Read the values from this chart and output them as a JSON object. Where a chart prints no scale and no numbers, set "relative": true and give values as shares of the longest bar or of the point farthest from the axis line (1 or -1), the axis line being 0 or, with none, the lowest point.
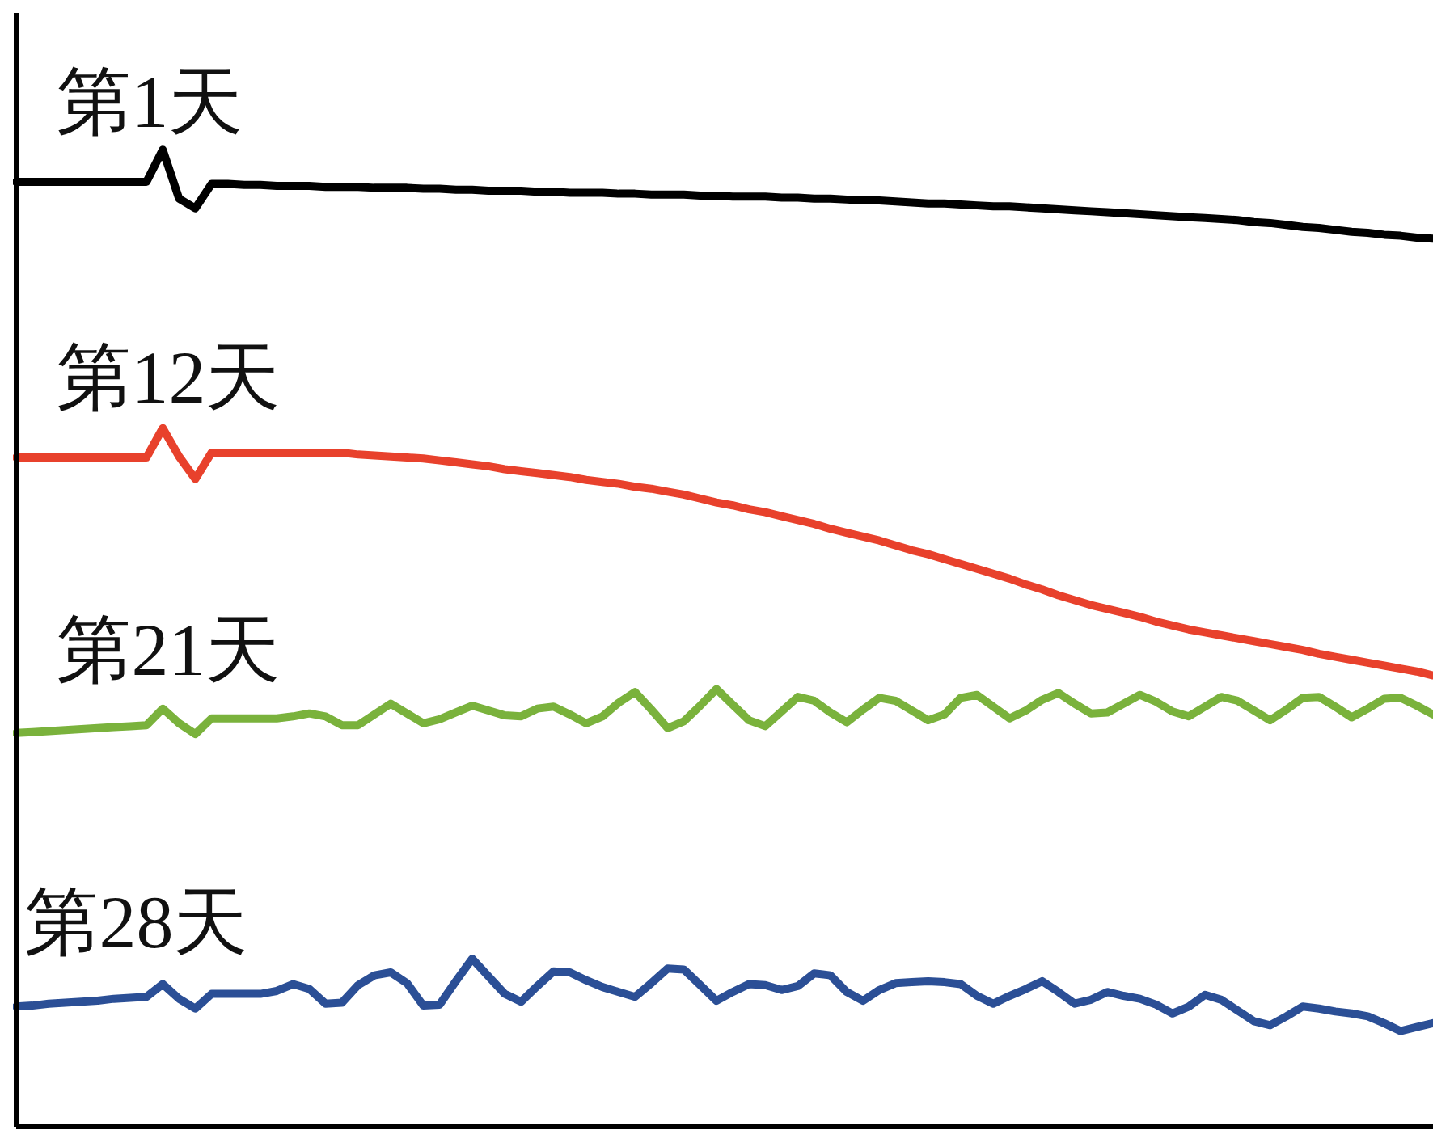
{
  "chart_data": {
    "type": "line",
    "relative": true,
    "marker": "none",
    "line_style": "solid",
    "categories": [
      null,
      null,
      null,
      null,
      null,
      null,
      null,
      null,
      null,
      null,
      null,
      null,
      null,
      null,
      null,
      null,
      null,
      null,
      null,
      null,
      null,
      null,
      null,
      null,
      null,
      null,
      null,
      null,
      null,
      null,
      null,
      null,
      null,
      null,
      null,
      null,
      null,
      null,
      null,
      null,
      null,
      null,
      null,
      null,
      null,
      null,
      null,
      null,
      null,
      null,
      null,
      null,
      null,
      null,
      null,
      null,
      null,
      null,
      null,
      null,
      null,
      null,
      null,
      null,
      null,
      null,
      null,
      null,
      null,
      null,
      null,
      null,
      null,
      null,
      null,
      null,
      null,
      null,
      null,
      null,
      null,
      null,
      null,
      null,
      null,
      null,
      null,
      null
    ],
    "series": [
      {
        "name": "第1天",
        "color": "#000000",
        "values": [
          0.967,
          0.967,
          0.967,
          0.967,
          0.967,
          0.967,
          0.967,
          0.967,
          0.967,
          1.0,
          0.95,
          0.94,
          0.965,
          0.965,
          0.964,
          0.964,
          0.963,
          0.963,
          0.963,
          0.962,
          0.962,
          0.962,
          0.961,
          0.961,
          0.961,
          0.96,
          0.96,
          0.959,
          0.959,
          0.958,
          0.958,
          0.958,
          0.957,
          0.957,
          0.956,
          0.956,
          0.956,
          0.955,
          0.955,
          0.954,
          0.954,
          0.954,
          0.953,
          0.953,
          0.952,
          0.952,
          0.952,
          0.951,
          0.951,
          0.95,
          0.95,
          0.949,
          0.948,
          0.948,
          0.947,
          0.946,
          0.945,
          0.945,
          0.944,
          0.943,
          0.942,
          0.942,
          0.941,
          0.94,
          0.939,
          0.938,
          0.937,
          0.936,
          0.935,
          0.934,
          0.933,
          0.932,
          0.931,
          0.93,
          0.929,
          0.928,
          0.926,
          0.925,
          0.923,
          0.921,
          0.92,
          0.918,
          0.916,
          0.915,
          0.913,
          0.912,
          0.91,
          0.909
        ]
      },
      {
        "name": "第12天",
        "color": "#e8412c",
        "values": [
          0.685,
          0.685,
          0.685,
          0.685,
          0.685,
          0.685,
          0.685,
          0.685,
          0.685,
          0.715,
          0.686,
          0.663,
          0.69,
          0.69,
          0.69,
          0.69,
          0.69,
          0.69,
          0.69,
          0.69,
          0.69,
          0.688,
          0.687,
          0.686,
          0.685,
          0.684,
          0.682,
          0.68,
          0.678,
          0.676,
          0.673,
          0.671,
          0.669,
          0.667,
          0.665,
          0.662,
          0.66,
          0.658,
          0.655,
          0.653,
          0.65,
          0.647,
          0.643,
          0.639,
          0.636,
          0.632,
          0.629,
          0.625,
          0.621,
          0.617,
          0.612,
          0.608,
          0.604,
          0.6,
          0.595,
          0.59,
          0.586,
          0.581,
          0.576,
          0.571,
          0.566,
          0.561,
          0.555,
          0.55,
          0.544,
          0.539,
          0.534,
          0.53,
          0.526,
          0.522,
          0.517,
          0.513,
          0.509,
          0.506,
          0.503,
          0.5,
          0.497,
          0.494,
          0.491,
          0.488,
          0.484,
          0.481,
          0.478,
          0.475,
          0.472,
          0.469,
          0.466,
          0.462
        ]
      },
      {
        "name": "第21天",
        "color": "#7ab23c",
        "values": [
          0.403,
          0.404,
          0.405,
          0.406,
          0.407,
          0.408,
          0.409,
          0.41,
          0.411,
          0.428,
          0.413,
          0.402,
          0.418,
          0.418,
          0.418,
          0.418,
          0.418,
          0.42,
          0.423,
          0.42,
          0.411,
          0.411,
          0.422,
          0.433,
          0.423,
          0.413,
          0.417,
          0.424,
          0.431,
          0.426,
          0.421,
          0.42,
          0.428,
          0.43,
          0.422,
          0.413,
          0.42,
          0.434,
          0.445,
          0.427,
          0.408,
          0.415,
          0.431,
          0.448,
          0.432,
          0.416,
          0.41,
          0.425,
          0.44,
          0.436,
          0.424,
          0.414,
          0.427,
          0.439,
          0.436,
          0.426,
          0.416,
          0.422,
          0.439,
          0.442,
          0.43,
          0.418,
          0.426,
          0.437,
          0.444,
          0.433,
          0.423,
          0.424,
          0.433,
          0.442,
          0.435,
          0.425,
          0.42,
          0.43,
          0.44,
          0.436,
          0.426,
          0.416,
          0.427,
          0.439,
          0.44,
          0.43,
          0.419,
          0.428,
          0.438,
          0.439,
          0.431,
          0.422
        ]
      },
      {
        "name": "第28天",
        "color": "#2b4f96",
        "values": [
          0.123,
          0.124,
          0.126,
          0.127,
          0.128,
          0.129,
          0.131,
          0.132,
          0.133,
          0.146,
          0.131,
          0.121,
          0.136,
          0.136,
          0.136,
          0.136,
          0.139,
          0.146,
          0.141,
          0.126,
          0.127,
          0.145,
          0.155,
          0.158,
          0.147,
          0.124,
          0.125,
          0.149,
          0.172,
          0.154,
          0.136,
          0.128,
          0.144,
          0.159,
          0.158,
          0.15,
          0.143,
          0.138,
          0.133,
          0.147,
          0.162,
          0.161,
          0.145,
          0.129,
          0.138,
          0.146,
          0.145,
          0.14,
          0.144,
          0.157,
          0.155,
          0.138,
          0.129,
          0.14,
          0.147,
          0.148,
          0.149,
          0.148,
          0.146,
          0.134,
          0.126,
          0.134,
          0.141,
          0.149,
          0.138,
          0.126,
          0.13,
          0.138,
          0.134,
          0.131,
          0.125,
          0.116,
          0.123,
          0.135,
          0.13,
          0.119,
          0.108,
          0.104,
          0.113,
          0.123,
          0.121,
          0.118,
          0.116,
          0.113,
          0.106,
          0.098,
          0.102,
          0.106
        ]
      }
    ]
  }
}
